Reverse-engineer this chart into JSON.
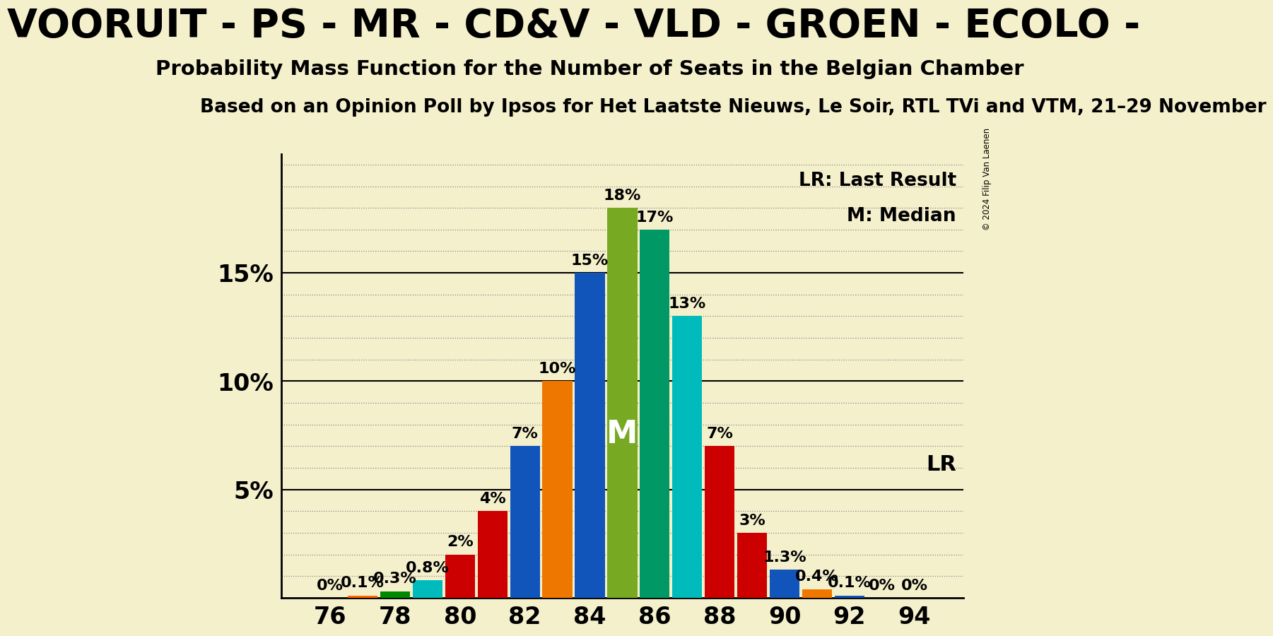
{
  "background_color": "#f5f0cc",
  "title_line1": "VOORUIT - PS - MR - CD&V - VLD - GROEN - ECOLO -",
  "title_line2": "Probability Mass Function for the Number of Seats in the Belgian Chamber",
  "title_line3": "Based on an Opinion Poll by Ipsos for Het Laatste Nieuws, Le Soir, RTL TVi and VTM, 21–29 November",
  "copyright_text": "© 2024 Filip Van Laenen",
  "seats": [
    76,
    77,
    78,
    79,
    80,
    81,
    82,
    83,
    84,
    85,
    86,
    87,
    88,
    89,
    90,
    91,
    92,
    93,
    94
  ],
  "probabilities": [
    0.0,
    0.1,
    0.3,
    0.8,
    2.0,
    4.0,
    7.0,
    10.0,
    15.0,
    18.0,
    17.0,
    13.0,
    7.0,
    3.0,
    1.3,
    0.4,
    0.1,
    0.0,
    0.0
  ],
  "bar_colors": [
    "#cc0000",
    "#ff6600",
    "#008800",
    "#00bbbb",
    "#cc0000",
    "#cc0000",
    "#1155bb",
    "#ee7700",
    "#1155bb",
    "#77aa22",
    "#009966",
    "#00bbbb",
    "#cc0000",
    "#cc0000",
    "#1155bb",
    "#ee7700",
    "#1155bb",
    "#cc0000",
    "#cc0000"
  ],
  "labels": [
    "0%",
    "0.1%",
    "0.3%",
    "0.8%",
    "2%",
    "4%",
    "7%",
    "10%",
    "15%",
    "18%",
    "17%",
    "13%",
    "7%",
    "3%",
    "1.3%",
    "0.4%",
    "0.1%",
    "0%",
    "0%"
  ],
  "median_seat": 85,
  "median_label": "M",
  "lr_seat": 91,
  "lr_label": "LR",
  "ylim": [
    0,
    20.5
  ],
  "legend_lr": "LR: Last Result",
  "legend_m": "M: Median",
  "dotted_grid_color": "#888888",
  "title1_fontsize": 40,
  "title2_fontsize": 21,
  "title3_fontsize": 19,
  "bar_label_fontsize": 16,
  "axis_tick_fontsize": 24
}
